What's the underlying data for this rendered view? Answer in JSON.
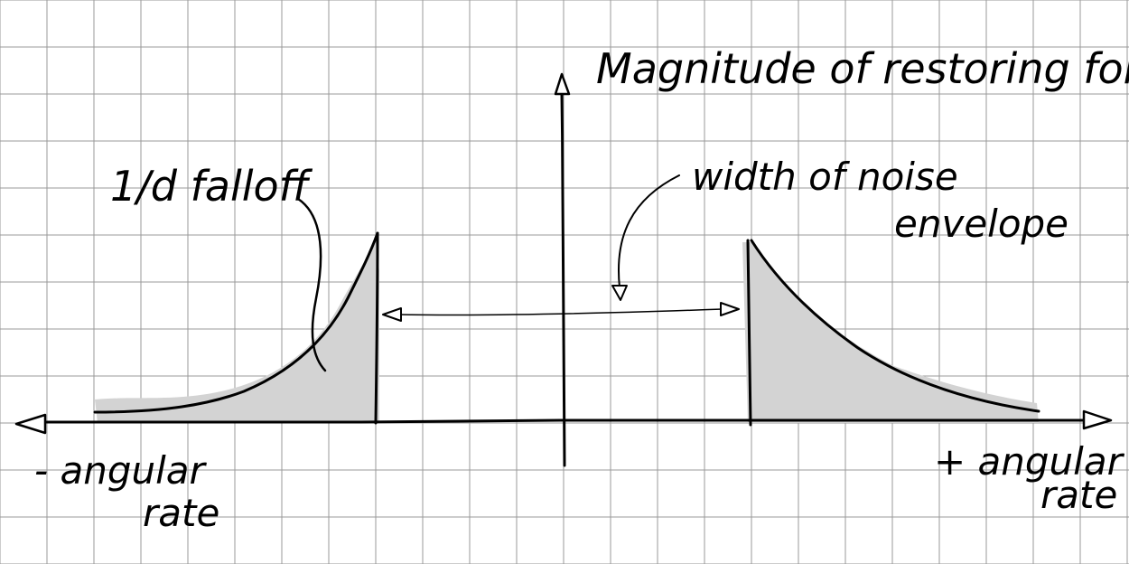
{
  "labels": {
    "y_axis": "Magnitude of restoring force",
    "falloff": "1/d falloff",
    "noise_width_line1": "width of noise",
    "noise_width_line2": "envelope",
    "neg_rate_line1": "- angular",
    "neg_rate_line2": "rate",
    "pos_rate_line1": "+ angular",
    "pos_rate_line2": "rate"
  },
  "colors": {
    "background": "#ffffff",
    "grid": "#9a9a9a",
    "ink": "#000000",
    "fill": "#d3d3d3"
  }
}
